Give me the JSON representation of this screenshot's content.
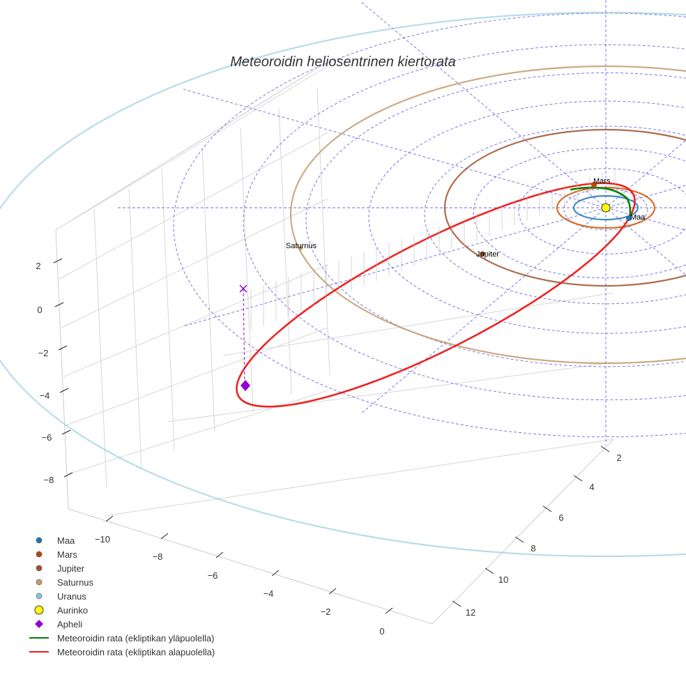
{
  "chart_data": {
    "type": "3d-line",
    "title": "Meteoroidin heliosentrinen kiertorata",
    "x_ticks": [
      "−10",
      "−8",
      "−6",
      "−4",
      "−2",
      "0"
    ],
    "y_ticks": [
      "2",
      "4",
      "6",
      "8",
      "10",
      "12"
    ],
    "z_ticks": [
      "2",
      "0",
      "−2",
      "−4",
      "−6",
      "−8"
    ],
    "planets": [
      {
        "name": "Maa",
        "color": "#1f77b4",
        "orbit_au": 1.0
      },
      {
        "name": "Mars",
        "color": "#d35400",
        "orbit_au": 1.52
      },
      {
        "name": "Jupiter",
        "color": "#a0522d",
        "orbit_au": 5.2
      },
      {
        "name": "Saturnus",
        "color": "#c49a6c",
        "orbit_au": 9.5
      },
      {
        "name": "Uranus",
        "color": "#87c6d8",
        "orbit_au": 19.2
      }
    ],
    "labels": {
      "mars": "Mars",
      "maa": "Maa",
      "jupiter": "Jupiter",
      "saturnus": "Saturnus"
    },
    "legend": [
      {
        "label": "Maa",
        "color": "#1f77b4",
        "marker": "circle"
      },
      {
        "label": "Mars",
        "color": "#c1440e",
        "marker": "circle"
      },
      {
        "label": "Jupiter",
        "color": "#a0522d",
        "marker": "circle"
      },
      {
        "label": "Saturnus",
        "color": "#c49a6c",
        "marker": "circle"
      },
      {
        "label": "Uranus",
        "color": "#87c6d8",
        "marker": "circle"
      },
      {
        "label": "Aurinko",
        "color": "#ffff00",
        "marker": "sun"
      },
      {
        "label": "Apheli",
        "color": "#9400d3",
        "marker": "diamond"
      },
      {
        "label": "Meteoroidin rata (ekliptikan yläpuolella)",
        "color": "#008000",
        "marker": "line"
      },
      {
        "label": "Meteoroidin rata (ekliptikan alapuolella)",
        "color": "#e41a1c",
        "marker": "line"
      }
    ],
    "legend_position": "bottom-left",
    "colors": {
      "above": "#008000",
      "below": "#ee2222",
      "grid": "#4444dd",
      "sun": "#ffff00",
      "aphelion": "#9400d3"
    }
  }
}
